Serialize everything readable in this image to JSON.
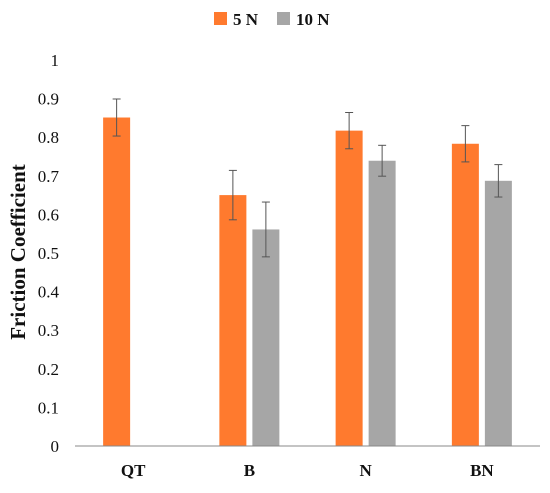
{
  "chart_data": {
    "type": "bar",
    "title": "",
    "xlabel": "",
    "ylabel": "Friction Coefficient",
    "ylim": [
      0,
      1
    ],
    "yticks": [
      "0",
      "0.1",
      "0.2",
      "0.3",
      "0.4",
      "0.5",
      "0.6",
      "0.7",
      "0.8",
      "0.9",
      "1"
    ],
    "ytick_values": [
      0,
      0.1,
      0.2,
      0.3,
      0.4,
      0.5,
      0.6,
      0.7,
      0.8,
      0.9,
      1
    ],
    "categories": [
      "QT",
      "B",
      "N",
      "BN"
    ],
    "grid": false,
    "legend_position": "top",
    "series": [
      {
        "name": "5 N",
        "color": "#FF7A2E",
        "values": [
          0.851,
          0.65,
          0.817,
          0.783
        ],
        "errors": [
          0.048,
          0.064,
          0.047,
          0.047
        ]
      },
      {
        "name": "10 N",
        "color": "#A6A6A6",
        "values": [
          null,
          0.561,
          0.739,
          0.687
        ],
        "errors": [
          null,
          0.071,
          0.04,
          0.042
        ]
      }
    ]
  }
}
